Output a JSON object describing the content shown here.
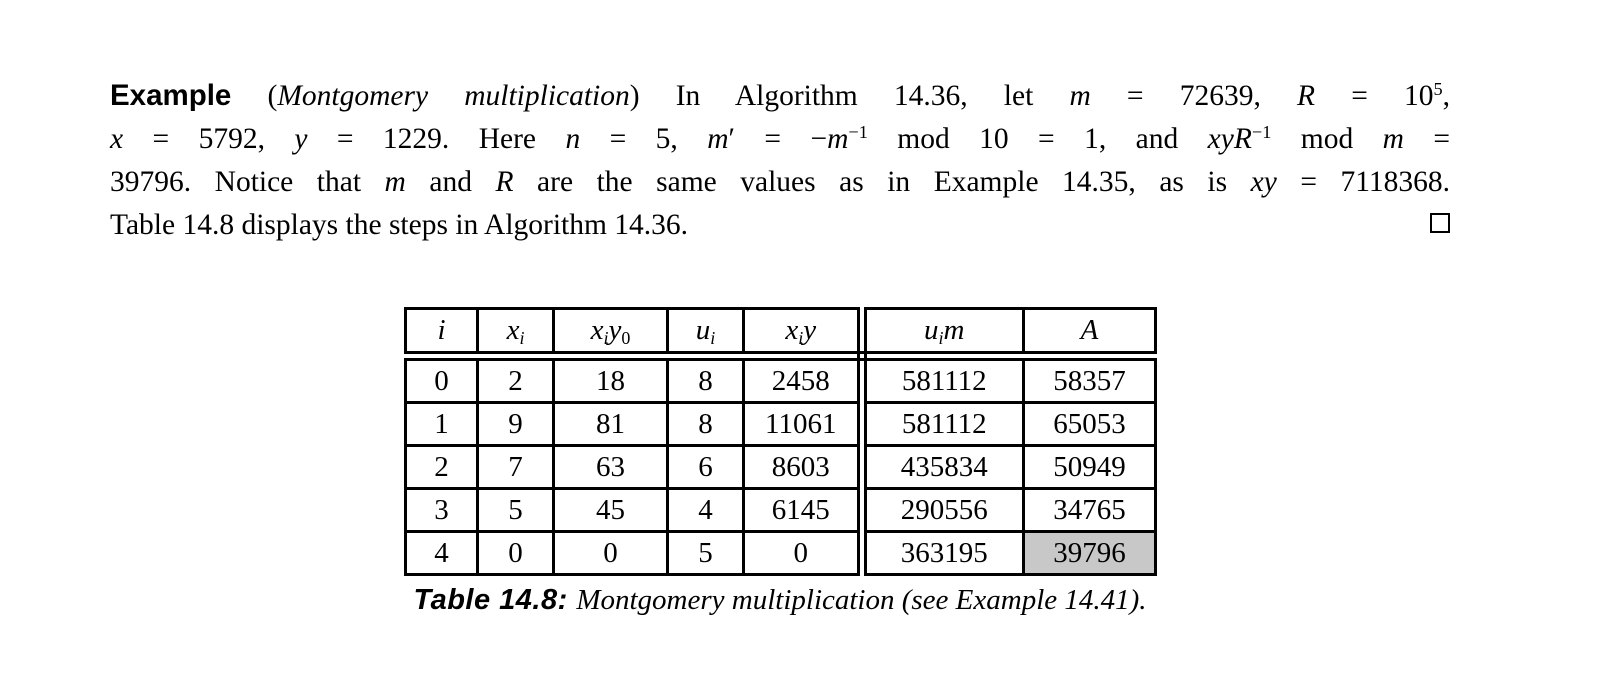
{
  "page": {
    "background": "#ffffff",
    "text_color": "#000000"
  },
  "example": {
    "lines": [
      [
        {
          "t": "Example",
          "s": "bf-sans"
        },
        {
          "t": " (",
          "s": "rm"
        },
        {
          "t": "Montgomery multiplication",
          "s": "it"
        },
        {
          "t": ") In Algorithm 14.36, let ",
          "s": "rm"
        },
        {
          "t": "m",
          "s": "it"
        },
        {
          "t": " = 72639, ",
          "s": "rm"
        },
        {
          "t": "R",
          "s": "it"
        },
        {
          "t": " = 10",
          "s": "rm"
        },
        {
          "t": "5",
          "s": "sup"
        },
        {
          "t": ",",
          "s": "rm"
        }
      ],
      [
        {
          "t": "x",
          "s": "it"
        },
        {
          "t": " = 5792, ",
          "s": "rm"
        },
        {
          "t": "y",
          "s": "it"
        },
        {
          "t": " = 1229. Here ",
          "s": "rm"
        },
        {
          "t": "n",
          "s": "it"
        },
        {
          "t": " = 5, ",
          "s": "rm"
        },
        {
          "t": "m",
          "s": "it"
        },
        {
          "t": "′",
          "s": "rm"
        },
        {
          "t": " = −",
          "s": "rm"
        },
        {
          "t": "m",
          "s": "it"
        },
        {
          "t": "−1",
          "s": "sup"
        },
        {
          "t": " mod 10 = 1, and ",
          "s": "rm"
        },
        {
          "t": "xyR",
          "s": "it"
        },
        {
          "t": "−1",
          "s": "sup"
        },
        {
          "t": " mod ",
          "s": "rm"
        },
        {
          "t": "m",
          "s": "it"
        },
        {
          "t": " =",
          "s": "rm"
        }
      ],
      [
        {
          "t": "39796. Notice that ",
          "s": "rm"
        },
        {
          "t": "m",
          "s": "it"
        },
        {
          "t": " and ",
          "s": "rm"
        },
        {
          "t": "R",
          "s": "it"
        },
        {
          "t": " are the same values as in Example 14.35, as is ",
          "s": "rm"
        },
        {
          "t": "xy",
          "s": "it"
        },
        {
          "t": " = 7118368.",
          "s": "rm"
        }
      ],
      [
        {
          "t": "Table 14.8 displays the steps in Algorithm 14.36.",
          "s": "rm"
        }
      ]
    ],
    "qed_icon": "hollow-square"
  },
  "table": {
    "headers": [
      [
        {
          "t": "i",
          "s": "it"
        }
      ],
      [
        {
          "t": "x",
          "s": "it"
        },
        {
          "t": "i",
          "s": "sub-it"
        }
      ],
      [
        {
          "t": "x",
          "s": "it"
        },
        {
          "t": "i",
          "s": "sub-it"
        },
        {
          "t": "y",
          "s": "it"
        },
        {
          "t": "0",
          "s": "sub"
        }
      ],
      [
        {
          "t": "u",
          "s": "it"
        },
        {
          "t": "i",
          "s": "sub-it"
        }
      ],
      [
        {
          "t": "x",
          "s": "it"
        },
        {
          "t": "i",
          "s": "sub-it"
        },
        {
          "t": "y",
          "s": "it"
        }
      ],
      [
        {
          "t": "u",
          "s": "it"
        },
        {
          "t": "i",
          "s": "sub-it"
        },
        {
          "t": "m",
          "s": "it"
        }
      ],
      [
        {
          "t": "A",
          "s": "it"
        }
      ]
    ],
    "rows": [
      [
        "0",
        "2",
        "18",
        "8",
        "2458",
        "581112",
        "58357"
      ],
      [
        "1",
        "9",
        "81",
        "8",
        "11061",
        "581112",
        "65053"
      ],
      [
        "2",
        "7",
        "63",
        "6",
        "8603",
        "435834",
        "50949"
      ],
      [
        "3",
        "5",
        "45",
        "4",
        "6145",
        "290556",
        "34765"
      ],
      [
        "4",
        "0",
        "0",
        "5",
        "0",
        "363195",
        "39796"
      ]
    ],
    "highlight_color": "#c8c8c8",
    "highlight_cell": {
      "row_index": 4,
      "column": "A",
      "value": "39796"
    },
    "caption": [
      {
        "t": "Table 14.8: ",
        "s": "bfit-sans"
      },
      {
        "t": "Montgomery multiplication (see Example 14.41).",
        "s": "it"
      }
    ]
  }
}
